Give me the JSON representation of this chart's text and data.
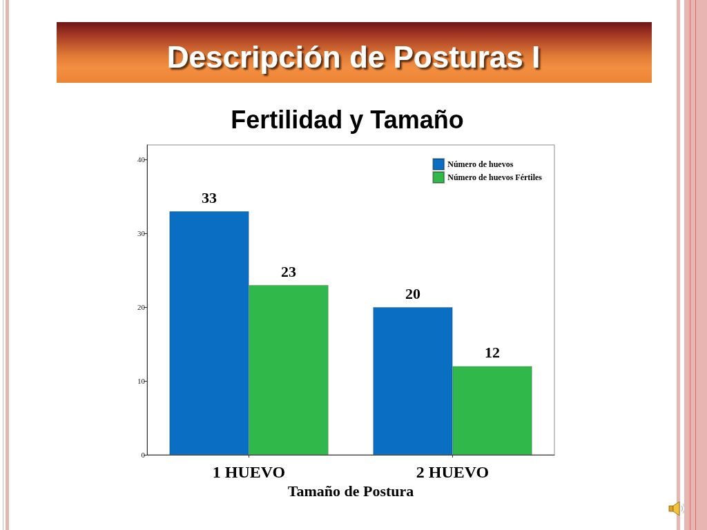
{
  "chart_data": {
    "type": "bar",
    "title": "Descripción de Posturas I",
    "subtitle": "Fertilidad y Tamaño",
    "xlabel": "Tamaño de Postura",
    "categories": [
      "1 HUEVO",
      "2 HUEVO"
    ],
    "series": [
      {
        "name": "Número de huevos",
        "color": "#0a6fc2",
        "values": [
          33,
          20
        ]
      },
      {
        "name": "Número de huevos Fértiles",
        "color": "#31b84b",
        "values": [
          23,
          12
        ]
      }
    ],
    "ylim": [
      0,
      42
    ],
    "yticks": [
      0,
      10,
      20,
      30,
      40
    ],
    "data_labels": true,
    "legend": "top right"
  }
}
